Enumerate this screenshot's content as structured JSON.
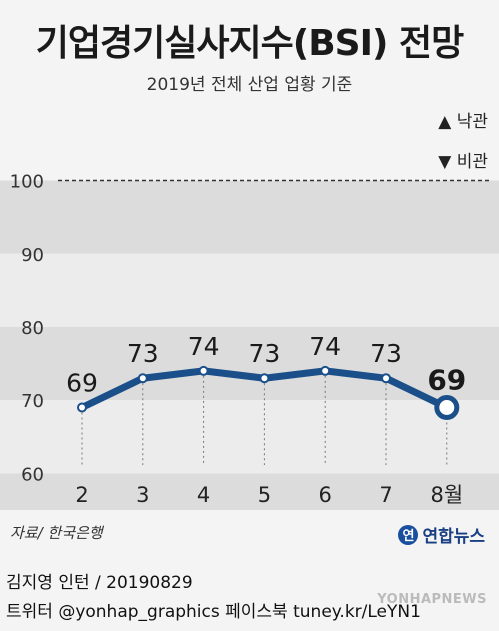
{
  "header": {
    "title": "기업경기실사지수(BSI) 전망",
    "subtitle": "2019년 전체 산업 업황 기준"
  },
  "legend": {
    "up_label": "▲ 낙관",
    "down_label": "▼ 비관"
  },
  "chart_data": {
    "type": "line",
    "categories": [
      "2",
      "3",
      "4",
      "5",
      "6",
      "7",
      "8월"
    ],
    "values": [
      69,
      73,
      74,
      73,
      74,
      73,
      69
    ],
    "value_labels": [
      "69",
      "73",
      "74",
      "73",
      "74",
      "73",
      "69"
    ],
    "yticks": [
      "60",
      "70",
      "80",
      "90",
      "100"
    ],
    "ylim": [
      55,
      111
    ],
    "reference_line": 100,
    "highlight_last": true,
    "colors": {
      "line": "#1a4f8a",
      "band_dark": "#dcdcdc",
      "band_light": "#ececec"
    }
  },
  "footer": {
    "source": "자료/ 한국은행",
    "logo_mark": "연",
    "logo_text": "연합뉴스",
    "credit": "김지영 인턴 / 20190829",
    "social": "트위터 @yonhap_graphics  페이스북 tuney.kr/LeYN1",
    "watermark": "YONHAPNEWS"
  }
}
